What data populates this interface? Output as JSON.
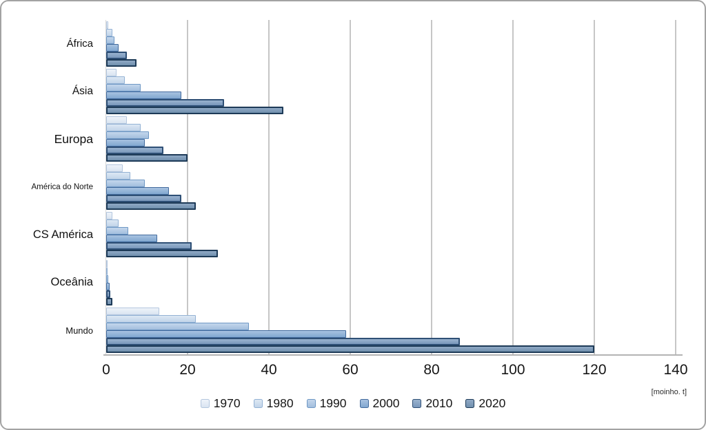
{
  "chart_data": {
    "type": "bar",
    "orientation": "horizontal",
    "title": "",
    "xlabel": "",
    "ylabel": "",
    "unit_label": "[moinho. t]",
    "xlim": [
      0,
      140
    ],
    "xticks": [
      0,
      20,
      40,
      60,
      80,
      100,
      120,
      140
    ],
    "grid": "vertical",
    "legend_position": "bottom-center",
    "categories": [
      "África",
      "Ásia",
      "Europa",
      "América do Norte",
      "CS América",
      "Oceânia",
      "Mundo"
    ],
    "series": [
      {
        "name": "1970",
        "values": [
          0.5,
          2.5,
          5,
          4,
          1.5,
          0.2,
          13
        ],
        "fill_top": "#eef3fa",
        "fill_bottom": "#d9e4f1",
        "border": "#b3c6de"
      },
      {
        "name": "1980",
        "values": [
          1.5,
          4.5,
          8.5,
          6,
          3,
          0.3,
          22
        ],
        "fill_top": "#dde8f4",
        "fill_bottom": "#c1d4e9",
        "border": "#92b1d4"
      },
      {
        "name": "1990",
        "values": [
          2,
          8.5,
          10.5,
          9.5,
          5.5,
          0.5,
          35
        ],
        "fill_top": "#c4d6ec",
        "fill_bottom": "#a2bedd",
        "border": "#6d97c4"
      },
      {
        "name": "2000",
        "values": [
          3,
          18.5,
          9.5,
          15.5,
          12.5,
          0.8,
          59
        ],
        "fill_top": "#a8c2e1",
        "fill_bottom": "#81a7d0",
        "border": "#41699c"
      },
      {
        "name": "2010",
        "values": [
          5,
          29,
          14,
          18.5,
          21,
          1,
          87
        ],
        "fill_top": "#9ab3cf",
        "fill_bottom": "#7997bb",
        "border": "#2e4f75"
      },
      {
        "name": "2020",
        "values": [
          7.5,
          43.5,
          20,
          22,
          27.5,
          1.5,
          120
        ],
        "fill_top": "#90a9c5",
        "fill_bottom": "#7190ae",
        "border": "#1d3a57"
      }
    ],
    "colors": {
      "gridline": "#c6c6c6",
      "axis": "#b3b3b3",
      "text": "#161616",
      "background": "#ffffff"
    }
  }
}
